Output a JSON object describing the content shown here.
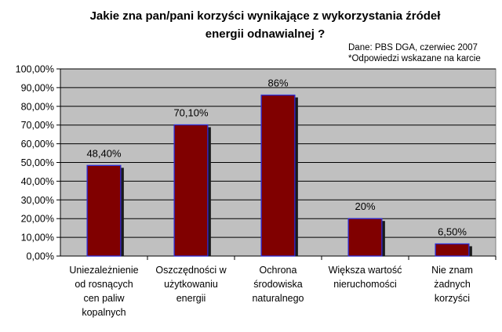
{
  "chart_data": {
    "type": "bar",
    "title_lines": [
      "Jakie zna pan/pani korzyści wynikające z wykorzystania źródeł",
      "energii odnawialnej ?"
    ],
    "source_note_lines": [
      "Dane: PBS DGA, czerwiec 2007",
      "*Odpowiedzi wskazane na karcie"
    ],
    "categories": [
      [
        "Uniezależnienie",
        "od rosnących",
        "cen paliw",
        "kopalnych"
      ],
      [
        "Oszczędności w",
        "użytkowaniu",
        "energii"
      ],
      [
        "Ochrona",
        "środowiska",
        "naturalnego"
      ],
      [
        "Większa wartość",
        "nieruchomości"
      ],
      [
        "Nie znam",
        "żadnych",
        "korzyści"
      ]
    ],
    "values": [
      48.4,
      70.1,
      86,
      20,
      6.5
    ],
    "data_labels": [
      "48,40%",
      "70,10%",
      "86%",
      "20%",
      "6,50%"
    ],
    "ylim": [
      0,
      100
    ],
    "yticks": [
      0,
      10,
      20,
      30,
      40,
      50,
      60,
      70,
      80,
      90,
      100
    ],
    "ytick_labels": [
      "0,00%",
      "10,00%",
      "20,00%",
      "30,00%",
      "40,00%",
      "50,00%",
      "60,00%",
      "70,00%",
      "80,00%",
      "90,00%",
      "100,00%"
    ],
    "grid": true,
    "colors": {
      "plot_bg": "#c0c0c0",
      "bar_fill": "#800000",
      "bar_border": "#2b2bd6",
      "bar_shadow": "#1a1a1a",
      "grid": "#000000"
    }
  }
}
